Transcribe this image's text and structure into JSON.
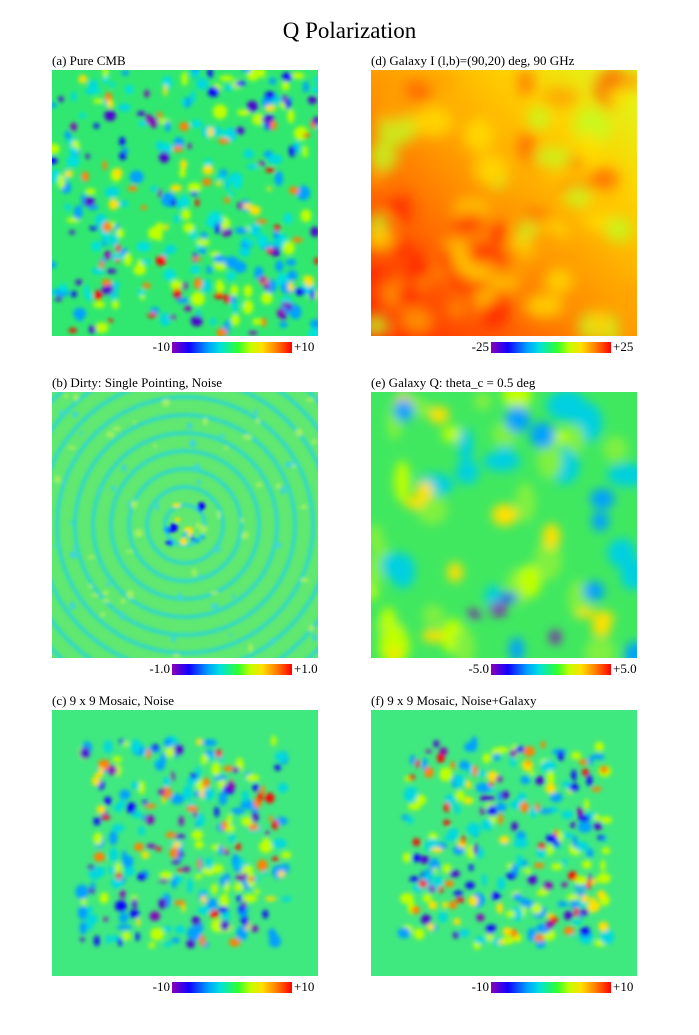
{
  "figure": {
    "title": "Q Polarization"
  },
  "panels": [
    {
      "id": "a",
      "caption": "(a) Pure CMB",
      "scale_min": "-10",
      "scale_max": "+10"
    },
    {
      "id": "b",
      "caption": "(b) Dirty: Single Pointing, Noise",
      "scale_min": "-1.0",
      "scale_max": "+1.0"
    },
    {
      "id": "c",
      "caption": "(c) 9 x 9 Mosaic, Noise",
      "scale_min": "-10",
      "scale_max": "+10"
    },
    {
      "id": "d",
      "caption": "(d) Galaxy I (l,b)=(90,20) deg, 90 GHz",
      "scale_min": "-25",
      "scale_max": "+25"
    },
    {
      "id": "e",
      "caption": "(e) Galaxy Q:  theta_c = 0.5 deg",
      "scale_min": "-5.0",
      "scale_max": "+5.0"
    },
    {
      "id": "f",
      "caption": "(f) 9 x 9 Mosaic, Noise+Galaxy",
      "scale_min": "-10",
      "scale_max": "+10"
    }
  ],
  "colors": {
    "colormap": [
      "#8a00b8",
      "#1000ff",
      "#00a0ff",
      "#00e0e0",
      "#30ff30",
      "#c0ff00",
      "#ffe000",
      "#ff8000",
      "#ff0000"
    ]
  }
}
